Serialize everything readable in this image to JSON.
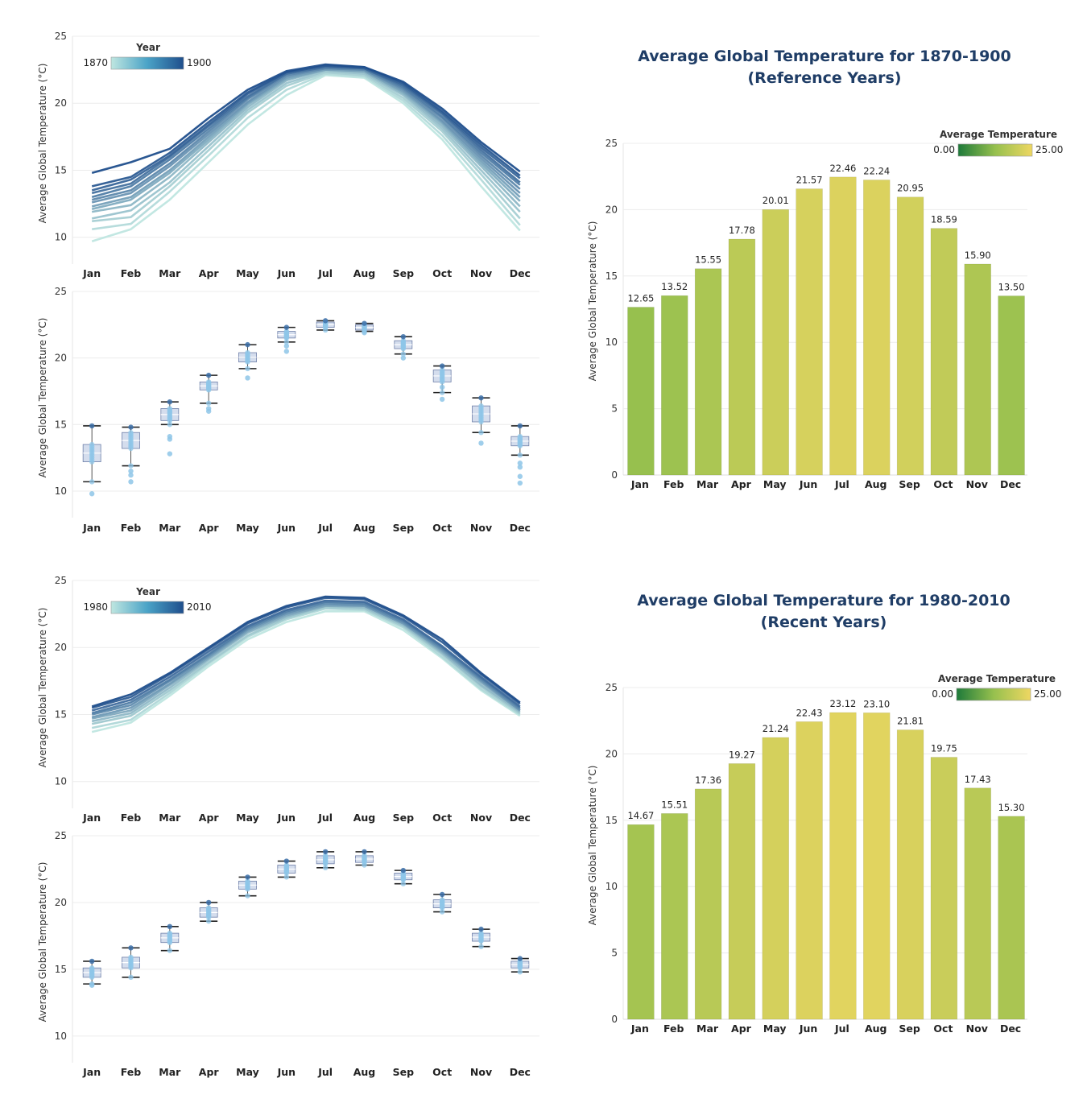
{
  "colors": {
    "line_low": "#bfe6e0",
    "line_high": "#1f4e8c",
    "bar_low": "#1e7a3a",
    "bar_high": "#eed762",
    "point": "#8ec5e8",
    "box": "#9fb3d6",
    "whisker": "#222222",
    "title": "#1f3d66",
    "grid": "#ececec"
  },
  "chart_data": [
    {
      "id": "ref-lines",
      "type": "line",
      "categories": [
        "Jan",
        "Feb",
        "Mar",
        "Apr",
        "May",
        "Jun",
        "Jul",
        "Aug",
        "Sep",
        "Oct",
        "Nov",
        "Dec"
      ],
      "ylabel": "Average Global Temperature (°C)",
      "ylim": [
        8,
        25
      ],
      "yticks": [
        "10",
        "15",
        "20",
        "25"
      ],
      "legend": {
        "title": "Year",
        "min_label": "1870",
        "max_label": "1900",
        "placement": "top-left"
      },
      "series": [
        {
          "values": [
            9.7,
            10.6,
            12.8,
            15.6,
            18.4,
            20.6,
            22.1,
            21.9,
            20.0,
            17.3,
            13.8,
            10.5
          ]
        },
        {
          "values": [
            10.6,
            11.0,
            13.4,
            16.1,
            18.9,
            21.0,
            22.2,
            22.0,
            20.2,
            17.6,
            14.3,
            10.9
          ]
        },
        {
          "values": [
            11.2,
            11.5,
            13.8,
            16.5,
            19.3,
            21.3,
            22.3,
            22.1,
            20.4,
            17.9,
            14.7,
            11.4
          ]
        },
        {
          "values": [
            11.4,
            12.0,
            14.1,
            16.8,
            19.5,
            21.5,
            22.4,
            22.2,
            20.6,
            18.1,
            15.0,
            11.9
          ]
        },
        {
          "values": [
            11.9,
            12.4,
            14.5,
            17.1,
            19.7,
            21.7,
            22.5,
            22.3,
            20.7,
            18.3,
            15.3,
            12.3
          ]
        },
        {
          "values": [
            12.1,
            12.8,
            14.8,
            17.3,
            19.9,
            21.8,
            22.5,
            22.4,
            20.8,
            18.5,
            15.5,
            12.7
          ]
        },
        {
          "values": [
            12.3,
            13.0,
            15.0,
            17.5,
            20.0,
            21.9,
            22.5,
            22.4,
            20.9,
            18.6,
            15.7,
            13.0
          ]
        },
        {
          "values": [
            12.6,
            13.3,
            15.3,
            17.7,
            20.1,
            22.0,
            22.6,
            22.5,
            21.0,
            18.7,
            15.9,
            13.3
          ]
        },
        {
          "values": [
            12.8,
            13.5,
            15.5,
            17.9,
            20.3,
            22.1,
            22.6,
            22.5,
            21.1,
            18.9,
            16.1,
            13.6
          ]
        },
        {
          "values": [
            13.0,
            13.8,
            15.8,
            18.1,
            20.4,
            22.2,
            22.7,
            22.6,
            21.2,
            19.0,
            16.3,
            13.9
          ]
        },
        {
          "values": [
            13.3,
            14.0,
            16.0,
            18.3,
            20.5,
            22.2,
            22.7,
            22.6,
            21.3,
            19.2,
            16.5,
            14.1
          ]
        },
        {
          "values": [
            13.5,
            14.3,
            16.1,
            18.4,
            20.7,
            22.3,
            22.8,
            22.6,
            21.4,
            19.3,
            16.7,
            14.4
          ]
        },
        {
          "values": [
            13.8,
            14.5,
            16.3,
            18.6,
            20.8,
            22.3,
            22.8,
            22.7,
            21.5,
            19.4,
            16.9,
            14.6
          ]
        },
        {
          "values": [
            14.8,
            15.6,
            16.6,
            18.9,
            21.0,
            22.4,
            22.9,
            22.7,
            21.6,
            19.6,
            17.1,
            14.9
          ]
        }
      ]
    },
    {
      "id": "ref-box",
      "type": "scatter",
      "categories": [
        "Jan",
        "Feb",
        "Mar",
        "Apr",
        "May",
        "Jun",
        "Jul",
        "Aug",
        "Sep",
        "Oct",
        "Nov",
        "Dec"
      ],
      "ylabel": "Average Global Temperature (°C)",
      "ylim": [
        8,
        25
      ],
      "yticks": [
        "10",
        "15",
        "20",
        "25"
      ],
      "boxes": [
        {
          "min": 10.7,
          "q1": 12.2,
          "q3": 13.5,
          "max": 14.9
        },
        {
          "min": 11.9,
          "q1": 13.2,
          "q3": 14.4,
          "max": 14.8
        },
        {
          "min": 15.0,
          "q1": 15.3,
          "q3": 16.2,
          "max": 16.7
        },
        {
          "min": 16.6,
          "q1": 17.6,
          "q3": 18.2,
          "max": 18.7
        },
        {
          "min": 19.2,
          "q1": 19.7,
          "q3": 20.4,
          "max": 21.0
        },
        {
          "min": 21.2,
          "q1": 21.5,
          "q3": 22.0,
          "max": 22.3
        },
        {
          "min": 22.1,
          "q1": 22.3,
          "q3": 22.7,
          "max": 22.8
        },
        {
          "min": 22.0,
          "q1": 22.1,
          "q3": 22.5,
          "max": 22.6
        },
        {
          "min": 20.3,
          "q1": 20.7,
          "q3": 21.3,
          "max": 21.6
        },
        {
          "min": 17.4,
          "q1": 18.2,
          "q3": 19.1,
          "max": 19.4
        },
        {
          "min": 14.4,
          "q1": 15.2,
          "q3": 16.4,
          "max": 17.0
        },
        {
          "min": 12.7,
          "q1": 13.4,
          "q3": 14.1,
          "max": 14.9
        }
      ],
      "outliers": [
        [
          9.8
        ],
        [
          10.7,
          11.2,
          11.5
        ],
        [
          12.8,
          13.9,
          14.1
        ],
        [
          16.0,
          16.2
        ],
        [
          18.5
        ],
        [
          20.5,
          20.9
        ],
        [],
        [
          21.9
        ],
        [
          20.0
        ],
        [
          16.9,
          17.8
        ],
        [
          13.6
        ],
        [
          10.6,
          11.1,
          11.8,
          12.1
        ]
      ]
    },
    {
      "id": "ref-bars",
      "type": "bar",
      "title": "Average Global Temperature for 1870-1900",
      "subtitle": "(Reference Years)",
      "categories": [
        "Jan",
        "Feb",
        "Mar",
        "Apr",
        "May",
        "Jun",
        "Jul",
        "Aug",
        "Sep",
        "Oct",
        "Nov",
        "Dec"
      ],
      "values": [
        12.65,
        13.52,
        15.55,
        17.78,
        20.01,
        21.57,
        22.46,
        22.24,
        20.95,
        18.59,
        15.9,
        13.5
      ],
      "labels": [
        "12.65",
        "13.52",
        "15.55",
        "17.78",
        "20.01",
        "21.57",
        "22.46",
        "22.24",
        "20.95",
        "18.59",
        "15.90",
        "13.50"
      ],
      "ylabel": "Average Global Temperature (°C)",
      "ylim": [
        0,
        25
      ],
      "yticks": [
        "0",
        "5",
        "10",
        "15",
        "20",
        "25"
      ],
      "legend": {
        "title": "Average Temperature",
        "min_label": "0.00",
        "max_label": "25.00",
        "placement": "top-right"
      }
    },
    {
      "id": "rec-lines",
      "type": "line",
      "categories": [
        "Jan",
        "Feb",
        "Mar",
        "Apr",
        "May",
        "Jun",
        "Jul",
        "Aug",
        "Sep",
        "Oct",
        "Nov",
        "Dec"
      ],
      "ylabel": "Average Global Temperature (°C)",
      "ylim": [
        8,
        25
      ],
      "yticks": [
        "10",
        "15",
        "20",
        "25"
      ],
      "legend": {
        "title": "Year",
        "min_label": "1980",
        "max_label": "2010",
        "placement": "top-left"
      },
      "series": [
        {
          "values": [
            13.7,
            14.4,
            16.4,
            18.6,
            20.6,
            21.9,
            22.7,
            22.7,
            21.3,
            19.2,
            16.8,
            14.9
          ]
        },
        {
          "values": [
            14.0,
            14.6,
            16.6,
            18.8,
            20.8,
            22.1,
            22.9,
            22.8,
            21.5,
            19.3,
            16.9,
            15.0
          ]
        },
        {
          "values": [
            14.3,
            14.9,
            16.8,
            18.9,
            20.9,
            22.2,
            23.0,
            22.9,
            21.6,
            19.5,
            17.1,
            15.1
          ]
        },
        {
          "values": [
            14.5,
            15.1,
            17.0,
            19.1,
            21.1,
            22.3,
            23.1,
            23.0,
            21.7,
            19.6,
            17.2,
            15.2
          ]
        },
        {
          "values": [
            14.7,
            15.3,
            17.2,
            19.2,
            21.2,
            22.4,
            23.1,
            23.1,
            21.8,
            19.7,
            17.4,
            15.3
          ]
        },
        {
          "values": [
            14.8,
            15.5,
            17.3,
            19.3,
            21.3,
            22.5,
            23.2,
            23.1,
            21.8,
            19.8,
            17.5,
            15.3
          ]
        },
        {
          "values": [
            15.0,
            15.7,
            17.5,
            19.4,
            21.4,
            22.6,
            23.3,
            23.2,
            21.9,
            19.9,
            17.6,
            15.4
          ]
        },
        {
          "values": [
            15.1,
            15.9,
            17.6,
            19.5,
            21.5,
            22.7,
            23.4,
            23.3,
            22.0,
            20.0,
            17.7,
            15.5
          ]
        },
        {
          "values": [
            15.3,
            16.1,
            17.8,
            19.7,
            21.6,
            22.8,
            23.5,
            23.4,
            22.1,
            20.1,
            17.8,
            15.6
          ]
        },
        {
          "values": [
            15.5,
            16.3,
            18.0,
            19.9,
            21.8,
            23.0,
            23.7,
            23.6,
            22.3,
            20.4,
            18.0,
            15.8
          ]
        },
        {
          "values": [
            15.6,
            16.5,
            18.1,
            20.0,
            21.9,
            23.1,
            23.8,
            23.7,
            22.4,
            20.6,
            18.1,
            15.9
          ]
        }
      ]
    },
    {
      "id": "rec-box",
      "type": "scatter",
      "categories": [
        "Jan",
        "Feb",
        "Mar",
        "Apr",
        "May",
        "Jun",
        "Jul",
        "Aug",
        "Sep",
        "Oct",
        "Nov",
        "Dec"
      ],
      "ylabel": "Average Global Temperature (°C)",
      "ylim": [
        8,
        25
      ],
      "yticks": [
        "10",
        "15",
        "20",
        "25"
      ],
      "boxes": [
        {
          "min": 13.9,
          "q1": 14.4,
          "q3": 15.1,
          "max": 15.6
        },
        {
          "min": 14.4,
          "q1": 15.1,
          "q3": 15.9,
          "max": 16.6
        },
        {
          "min": 16.4,
          "q1": 17.0,
          "q3": 17.7,
          "max": 18.2
        },
        {
          "min": 18.6,
          "q1": 18.9,
          "q3": 19.6,
          "max": 20.0
        },
        {
          "min": 20.5,
          "q1": 21.0,
          "q3": 21.6,
          "max": 21.9
        },
        {
          "min": 21.9,
          "q1": 22.2,
          "q3": 22.8,
          "max": 23.1
        },
        {
          "min": 22.6,
          "q1": 22.9,
          "q3": 23.5,
          "max": 23.8
        },
        {
          "min": 22.8,
          "q1": 23.0,
          "q3": 23.5,
          "max": 23.8
        },
        {
          "min": 21.4,
          "q1": 21.7,
          "q3": 22.2,
          "max": 22.4
        },
        {
          "min": 19.3,
          "q1": 19.6,
          "q3": 20.2,
          "max": 20.6
        },
        {
          "min": 16.7,
          "q1": 17.1,
          "q3": 17.7,
          "max": 18.0
        },
        {
          "min": 14.8,
          "q1": 15.1,
          "q3": 15.6,
          "max": 15.8
        }
      ],
      "outliers": [
        [
          13.8
        ],
        [],
        [],
        [],
        [],
        [],
        [],
        [],
        [],
        [],
        [],
        []
      ]
    },
    {
      "id": "rec-bars",
      "type": "bar",
      "title": "Average Global Temperature for 1980-2010",
      "subtitle": "(Recent Years)",
      "categories": [
        "Jan",
        "Feb",
        "Mar",
        "Apr",
        "May",
        "Jun",
        "Jul",
        "Aug",
        "Sep",
        "Oct",
        "Nov",
        "Dec"
      ],
      "values": [
        14.67,
        15.51,
        17.36,
        19.27,
        21.24,
        22.43,
        23.12,
        23.1,
        21.81,
        19.75,
        17.43,
        15.3
      ],
      "labels": [
        "14.67",
        "15.51",
        "17.36",
        "19.27",
        "21.24",
        "22.43",
        "23.12",
        "23.10",
        "21.81",
        "19.75",
        "17.43",
        "15.30"
      ],
      "ylabel": "Average Global Temperature (°C)",
      "ylim": [
        0,
        25
      ],
      "yticks": [
        "0",
        "5",
        "10",
        "15",
        "20",
        "25"
      ],
      "legend": {
        "title": "Average Temperature",
        "min_label": "0.00",
        "max_label": "25.00",
        "placement": "top-right"
      }
    }
  ]
}
